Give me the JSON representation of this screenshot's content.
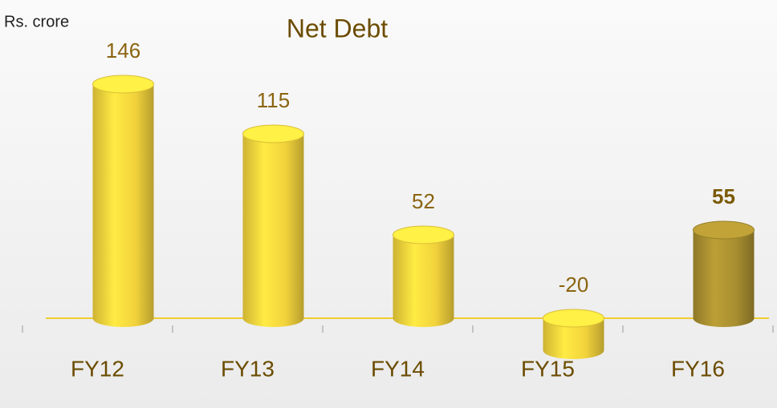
{
  "chart_data": {
    "type": "bar",
    "title": "Net Debt",
    "y_label": "Rs. crore",
    "categories": [
      "FY12",
      "FY13",
      "FY14",
      "FY15",
      "FY16"
    ],
    "values": [
      146,
      115,
      52,
      -20,
      55
    ],
    "colors": [
      "#f2d23c",
      "#f2d23c",
      "#f2d23c",
      "#f2d23c",
      "#a88e30"
    ],
    "value_label_weights": [
      "normal",
      "normal",
      "normal",
      "normal",
      "bold"
    ]
  }
}
